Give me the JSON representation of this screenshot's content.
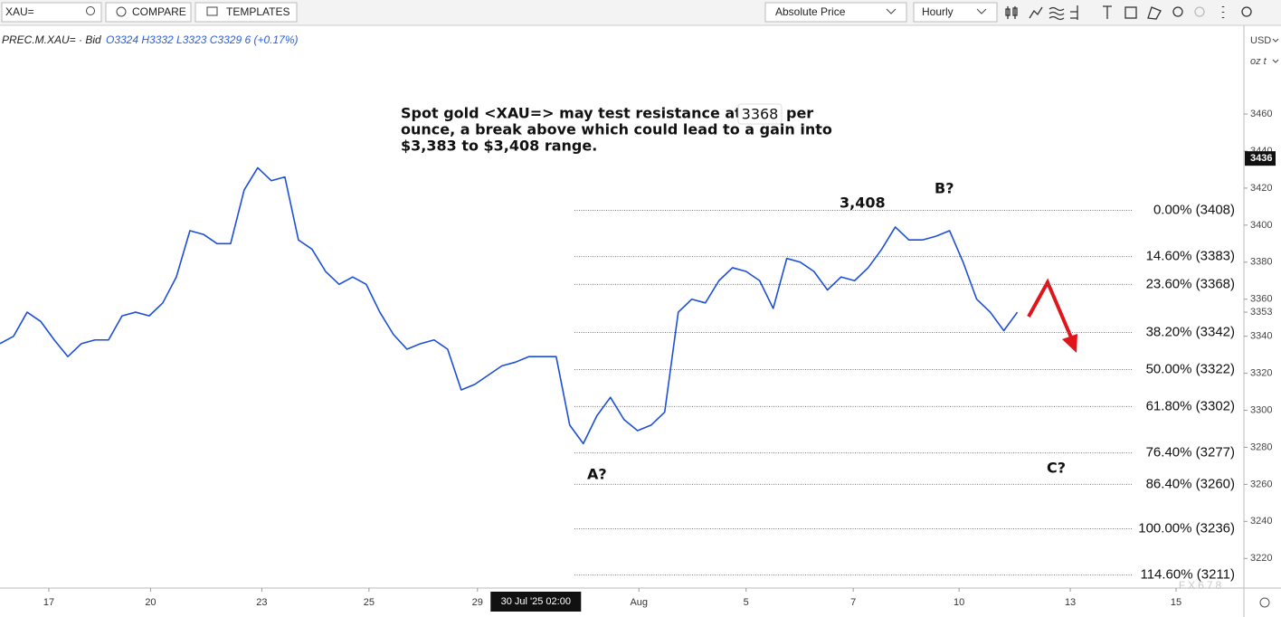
{
  "toolbar": {
    "symbol": "XAU=",
    "compare": "COMPARE",
    "templates": "TEMPLATES",
    "price_mode": "Absolute Price",
    "interval": "Hourly"
  },
  "chart_data": {
    "type": "line",
    "legend": {
      "instrument": "PREC.M.XAU= · Bid",
      "ohlc": "O3324 H3332 L3323 C3329 6 (+0.17%)"
    },
    "series": [
      {
        "color": "#1c4fd8",
        "values": [
          3336,
          3340,
          3353,
          3348,
          3338,
          3329,
          3336,
          3338,
          3338,
          3351,
          3353,
          3351,
          3358,
          3372,
          3397,
          3395,
          3390,
          3390,
          3419,
          3431,
          3424,
          3426,
          3392,
          3387,
          3375,
          3368,
          3372,
          3368,
          3353,
          3341,
          3333,
          3336,
          3338,
          3333,
          3311,
          3314,
          3319,
          3324,
          3326,
          3329,
          3329,
          3329,
          3292,
          3282,
          3297,
          3307,
          3295,
          3289,
          3292,
          3299,
          3353,
          3360,
          3358,
          3370,
          3377,
          3375,
          3370,
          3355,
          3382,
          3380,
          3375,
          3365,
          3372,
          3370,
          3377,
          3387,
          3399,
          3392,
          3392,
          3394,
          3397,
          3380,
          3360,
          3353,
          3343,
          3353
        ]
      }
    ],
    "xlim": [
      0,
      91.5
    ],
    "xticks": [
      {
        "value": 3.6,
        "label": "17"
      },
      {
        "value": 11.1,
        "label": "20"
      },
      {
        "value": 19.3,
        "label": "23"
      },
      {
        "value": 27.2,
        "label": "25"
      },
      {
        "value": 35.2,
        "label": "29"
      },
      {
        "value": 47.1,
        "label": "Aug"
      },
      {
        "value": 55,
        "label": "5"
      },
      {
        "value": 62.9,
        "label": "7"
      },
      {
        "value": 70.7,
        "label": "10"
      },
      {
        "value": 78.9,
        "label": "13"
      },
      {
        "value": 86.7,
        "label": "15"
      }
    ],
    "crosshair": {
      "value": 39.5,
      "label": "30 Jul '25 02:00"
    },
    "ylim": [
      3204,
      3504
    ],
    "yticks": [
      3220,
      3240,
      3260,
      3280,
      3300,
      3320,
      3340,
      3360,
      3380,
      3400,
      3420,
      3440,
      3460
    ],
    "price_markers": [
      3436,
      3353
    ],
    "currency": "USD",
    "unit": "oz t",
    "grid": false,
    "fib_levels": [
      {
        "value": 3408,
        "label": "0.00% (3408)"
      },
      {
        "value": 3383,
        "label": "14.60% (3383)"
      },
      {
        "value": 3368,
        "label": "23.60% (3368)"
      },
      {
        "value": 3342,
        "label": "38.20% (3342)"
      },
      {
        "value": 3322,
        "label": "50.00% (3322)"
      },
      {
        "value": 3302,
        "label": "61.80% (3302)"
      },
      {
        "value": 3277,
        "label": "76.40% (3277)"
      },
      {
        "value": 3260,
        "label": "86.40% (3260)"
      },
      {
        "value": 3236,
        "label": "100.00% (3236)"
      },
      {
        "value": 3211,
        "label": "114.60% (3211)"
      }
    ],
    "annotations": {
      "note": [
        "Spot gold <XAU=> may test resistance at $",
        "3368",
        "per",
        "ounce, a break above which could lead to a gain into",
        "$3,383 to $3,408 range."
      ],
      "high_label": "3,408",
      "wave_a": "A?",
      "wave_b": "B?",
      "wave_c": "C?"
    },
    "watermark": "FX678"
  }
}
